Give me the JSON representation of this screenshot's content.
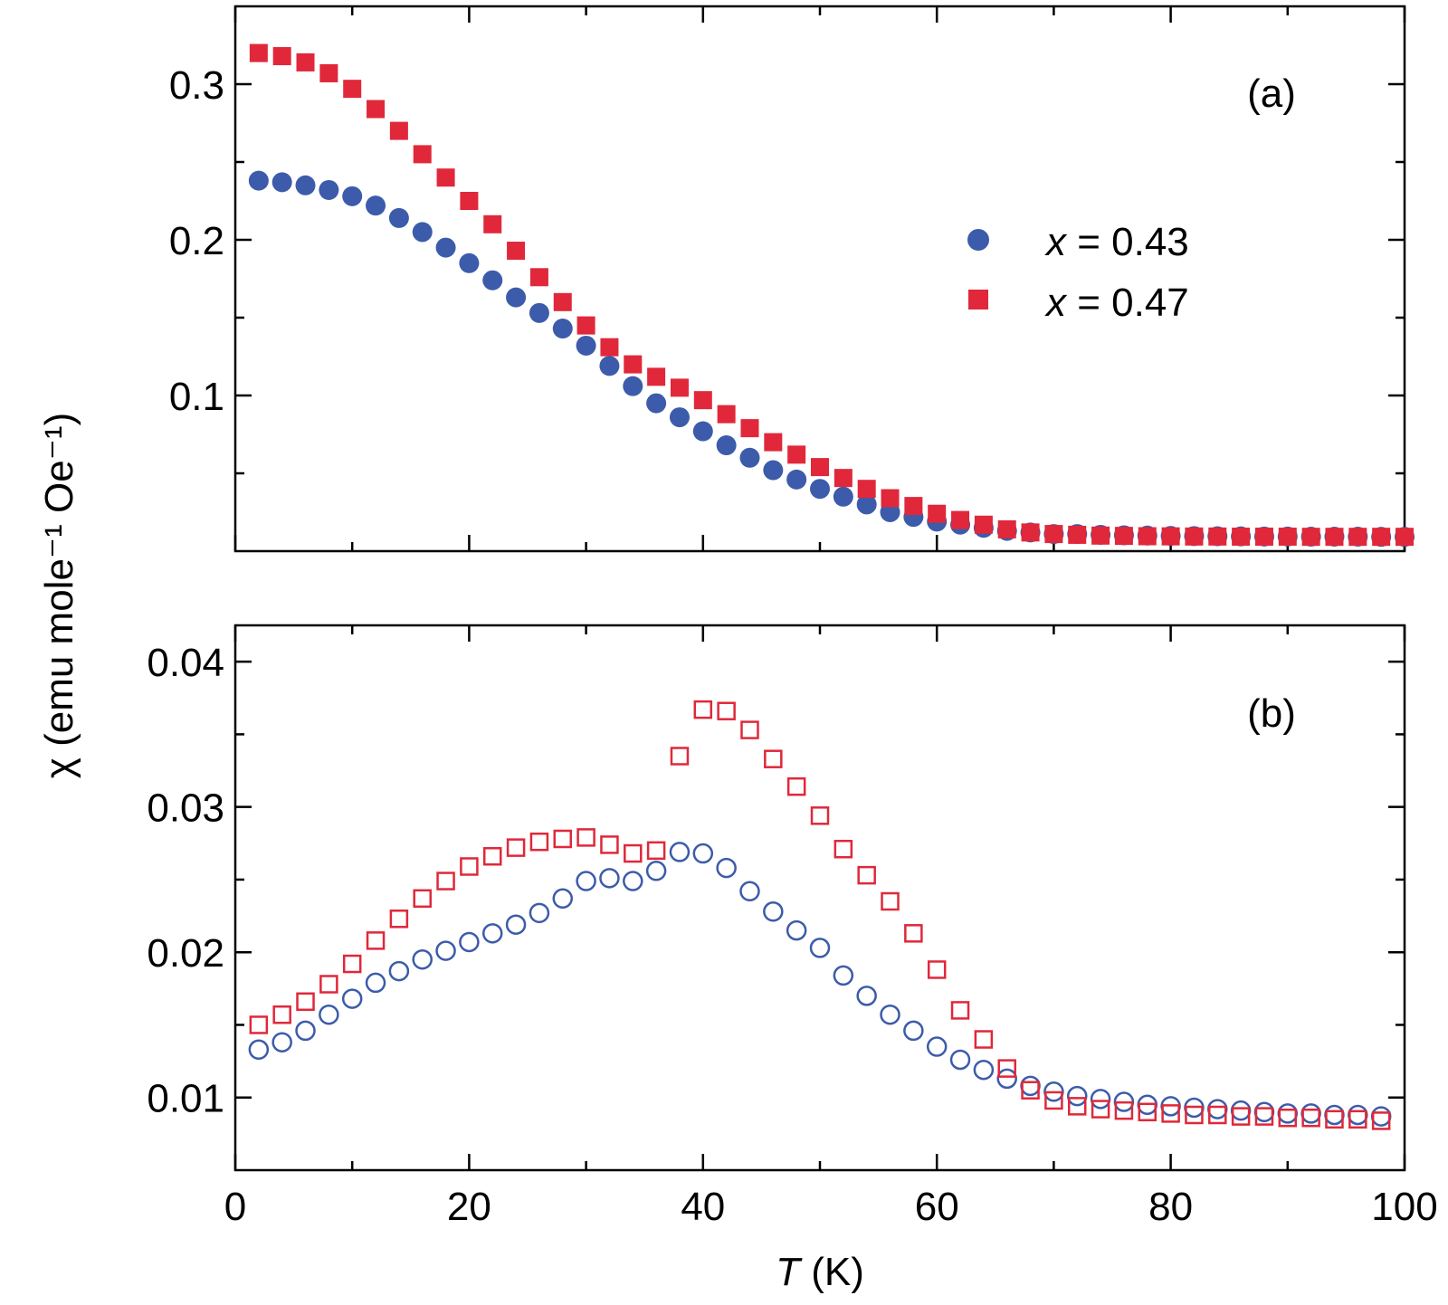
{
  "colors": {
    "blue": "#3C5BAA",
    "red": "#E0283A"
  },
  "axes": {
    "xlabel_italic": "T",
    "xlabel_unit": " (K)",
    "ylabel": "χ (emu mole⁻¹ Oe⁻¹)",
    "x_ticks": [
      "0",
      "20",
      "40",
      "60",
      "80",
      "100"
    ]
  },
  "panel_a": {
    "label": "(a)",
    "y_ticks": [
      "0.1",
      "0.2",
      "0.3"
    ],
    "legend": [
      {
        "var": "x",
        "text": " = 0.43"
      },
      {
        "var": "x",
        "text": " = 0.47"
      }
    ]
  },
  "panel_b": {
    "label": "(b)",
    "y_ticks": [
      "0.01",
      "0.02",
      "0.03",
      "0.04"
    ]
  },
  "chart_data": [
    {
      "type": "scatter",
      "panel": "(a)",
      "xlabel": "T (K)",
      "ylabel": "χ (emu mole⁻¹ Oe⁻¹)",
      "xlim": [
        0,
        100
      ],
      "ylim": [
        0,
        0.35
      ],
      "grid": false,
      "legend_position": "right",
      "series": [
        {
          "name": "x = 0.43",
          "marker": "filled-circle",
          "color": "#3C5BAA",
          "x": [
            2,
            4,
            6,
            8,
            10,
            12,
            14,
            16,
            18,
            20,
            22,
            24,
            26,
            28,
            30,
            32,
            34,
            36,
            38,
            40,
            42,
            44,
            46,
            48,
            50,
            52,
            54,
            56,
            58,
            60,
            62,
            64,
            66,
            68,
            70,
            72,
            74,
            76,
            78,
            80,
            82,
            84,
            86,
            88,
            90,
            92,
            94,
            96,
            98,
            100
          ],
          "y": [
            0.238,
            0.237,
            0.235,
            0.232,
            0.228,
            0.222,
            0.214,
            0.205,
            0.195,
            0.185,
            0.174,
            0.163,
            0.153,
            0.143,
            0.132,
            0.119,
            0.106,
            0.095,
            0.086,
            0.077,
            0.068,
            0.06,
            0.052,
            0.046,
            0.04,
            0.035,
            0.03,
            0.025,
            0.022,
            0.019,
            0.017,
            0.015,
            0.013,
            0.012,
            0.011,
            0.011,
            0.0105,
            0.0102,
            0.01,
            0.0098,
            0.0097,
            0.0096,
            0.0095,
            0.0094,
            0.0094,
            0.0093,
            0.0093,
            0.0093,
            0.0092,
            0.0092
          ]
        },
        {
          "name": "x = 0.47",
          "marker": "filled-square",
          "color": "#E0283A",
          "x": [
            2,
            4,
            6,
            8,
            10,
            12,
            14,
            16,
            18,
            20,
            22,
            24,
            26,
            28,
            30,
            32,
            34,
            36,
            38,
            40,
            42,
            44,
            46,
            48,
            50,
            52,
            54,
            56,
            58,
            60,
            62,
            64,
            66,
            68,
            70,
            72,
            74,
            76,
            78,
            80,
            82,
            84,
            86,
            88,
            90,
            92,
            94,
            96,
            98,
            100
          ],
          "y": [
            0.32,
            0.318,
            0.314,
            0.307,
            0.297,
            0.284,
            0.27,
            0.255,
            0.24,
            0.225,
            0.21,
            0.193,
            0.176,
            0.16,
            0.145,
            0.131,
            0.12,
            0.112,
            0.105,
            0.097,
            0.088,
            0.079,
            0.07,
            0.062,
            0.054,
            0.047,
            0.04,
            0.034,
            0.029,
            0.024,
            0.02,
            0.017,
            0.014,
            0.012,
            0.011,
            0.0105,
            0.01,
            0.0098,
            0.0096,
            0.0095,
            0.0094,
            0.0094,
            0.0093,
            0.0093,
            0.0093,
            0.0092,
            0.0092,
            0.0092,
            0.0092,
            0.0092
          ]
        }
      ]
    },
    {
      "type": "scatter",
      "panel": "(b)",
      "xlabel": "T (K)",
      "ylabel": "χ (emu mole⁻¹ Oe⁻¹)",
      "xlim": [
        0,
        100
      ],
      "ylim": [
        0.005,
        0.0425
      ],
      "grid": false,
      "series": [
        {
          "name": "x = 0.43",
          "marker": "open-circle",
          "color": "#3C5BAA",
          "x": [
            2,
            4,
            6,
            8,
            10,
            12,
            14,
            16,
            18,
            20,
            22,
            24,
            26,
            28,
            30,
            32,
            34,
            36,
            38,
            40,
            42,
            44,
            46,
            48,
            50,
            52,
            54,
            56,
            58,
            60,
            62,
            64,
            66,
            68,
            70,
            72,
            74,
            76,
            78,
            80,
            82,
            84,
            86,
            88,
            90,
            92,
            94,
            96,
            98
          ],
          "y": [
            0.0133,
            0.0138,
            0.0146,
            0.0157,
            0.0168,
            0.0179,
            0.0187,
            0.0195,
            0.0201,
            0.0207,
            0.0213,
            0.0219,
            0.0227,
            0.0237,
            0.0249,
            0.0251,
            0.0249,
            0.0256,
            0.0269,
            0.0268,
            0.0258,
            0.0242,
            0.0228,
            0.0215,
            0.0203,
            0.0184,
            0.017,
            0.0157,
            0.0146,
            0.0135,
            0.0126,
            0.0119,
            0.0113,
            0.0108,
            0.0104,
            0.0101,
            0.0099,
            0.0097,
            0.0095,
            0.0094,
            0.0093,
            0.0092,
            0.0091,
            0.009,
            0.0089,
            0.0089,
            0.0088,
            0.0088,
            0.0087
          ]
        },
        {
          "name": "x = 0.47",
          "marker": "open-square",
          "color": "#E0283A",
          "x": [
            2,
            4,
            6,
            8,
            10,
            12,
            14,
            16,
            18,
            20,
            22,
            24,
            26,
            28,
            30,
            32,
            34,
            36,
            38,
            40,
            42,
            44,
            46,
            48,
            50,
            52,
            54,
            56,
            58,
            60,
            62,
            64,
            66,
            68,
            70,
            72,
            74,
            76,
            78,
            80,
            82,
            84,
            86,
            88,
            90,
            92,
            94,
            96,
            98
          ],
          "y": [
            0.015,
            0.0157,
            0.0166,
            0.0178,
            0.0192,
            0.0208,
            0.0223,
            0.0237,
            0.0249,
            0.0259,
            0.0266,
            0.0272,
            0.0276,
            0.0278,
            0.0279,
            0.0274,
            0.0268,
            0.027,
            0.0335,
            0.0367,
            0.0366,
            0.0353,
            0.0333,
            0.0314,
            0.0294,
            0.0271,
            0.0253,
            0.0235,
            0.0213,
            0.0188,
            0.016,
            0.014,
            0.012,
            0.0105,
            0.0098,
            0.0094,
            0.0092,
            0.0091,
            0.009,
            0.0089,
            0.0088,
            0.0088,
            0.0087,
            0.0087,
            0.0086,
            0.0086,
            0.0085,
            0.0085,
            0.0084
          ]
        }
      ]
    }
  ]
}
